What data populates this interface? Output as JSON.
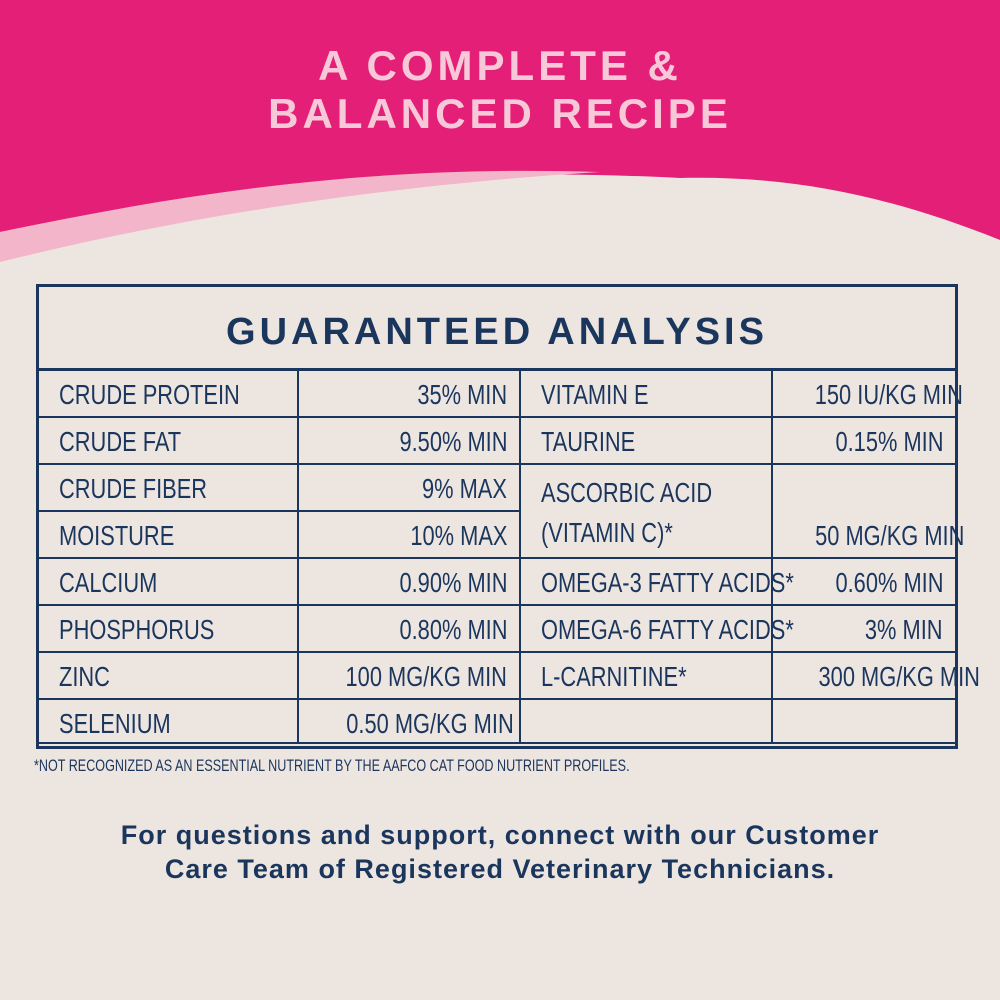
{
  "colors": {
    "pink": "#e41f77",
    "light_pink": "#f3b5c9",
    "cream": "#ede5e0",
    "navy": "#1b365d"
  },
  "headline": {
    "line1": "A COMPLETE &",
    "line2": "BALANCED RECIPE"
  },
  "table": {
    "title": "GUARANTEED ANALYSIS",
    "left": [
      {
        "label": "CRUDE PROTEIN",
        "value": "35% MIN"
      },
      {
        "label": "CRUDE FAT",
        "value": "9.50% MIN"
      },
      {
        "label": "CRUDE FIBER",
        "value": "9% MAX"
      },
      {
        "label": "MOISTURE",
        "value": "10% MAX"
      },
      {
        "label": "CALCIUM",
        "value": "0.90% MIN"
      },
      {
        "label": "PHOSPHORUS",
        "value": "0.80% MIN"
      },
      {
        "label": "ZINC",
        "value": "100 MG/KG MIN"
      },
      {
        "label": "SELENIUM",
        "value": "0.50 MG/KG MIN"
      }
    ],
    "right": [
      {
        "label": "VITAMIN E",
        "value": "150 IU/KG MIN"
      },
      {
        "label": "TAURINE",
        "value": "0.15% MIN"
      },
      {
        "label": "ASCORBIC ACID",
        "label2": "(VITAMIN C)*",
        "value": "50 MG/KG MIN"
      },
      {
        "label": "OMEGA-3 FATTY ACIDS*",
        "value": "0.60% MIN"
      },
      {
        "label": "OMEGA-6 FATTY ACIDS*",
        "value": "3% MIN"
      },
      {
        "label": "L-CARNITINE*",
        "value": "300 MG/KG MIN"
      },
      {
        "label": "",
        "value": ""
      }
    ]
  },
  "footnote": "*NOT RECOGNIZED AS AN ESSENTIAL NUTRIENT BY THE AAFCO CAT FOOD NUTRIENT PROFILES.",
  "support": {
    "line1": "For questions and support, connect with our Customer",
    "line2": "Care Team of Registered Veterinary Technicians."
  }
}
